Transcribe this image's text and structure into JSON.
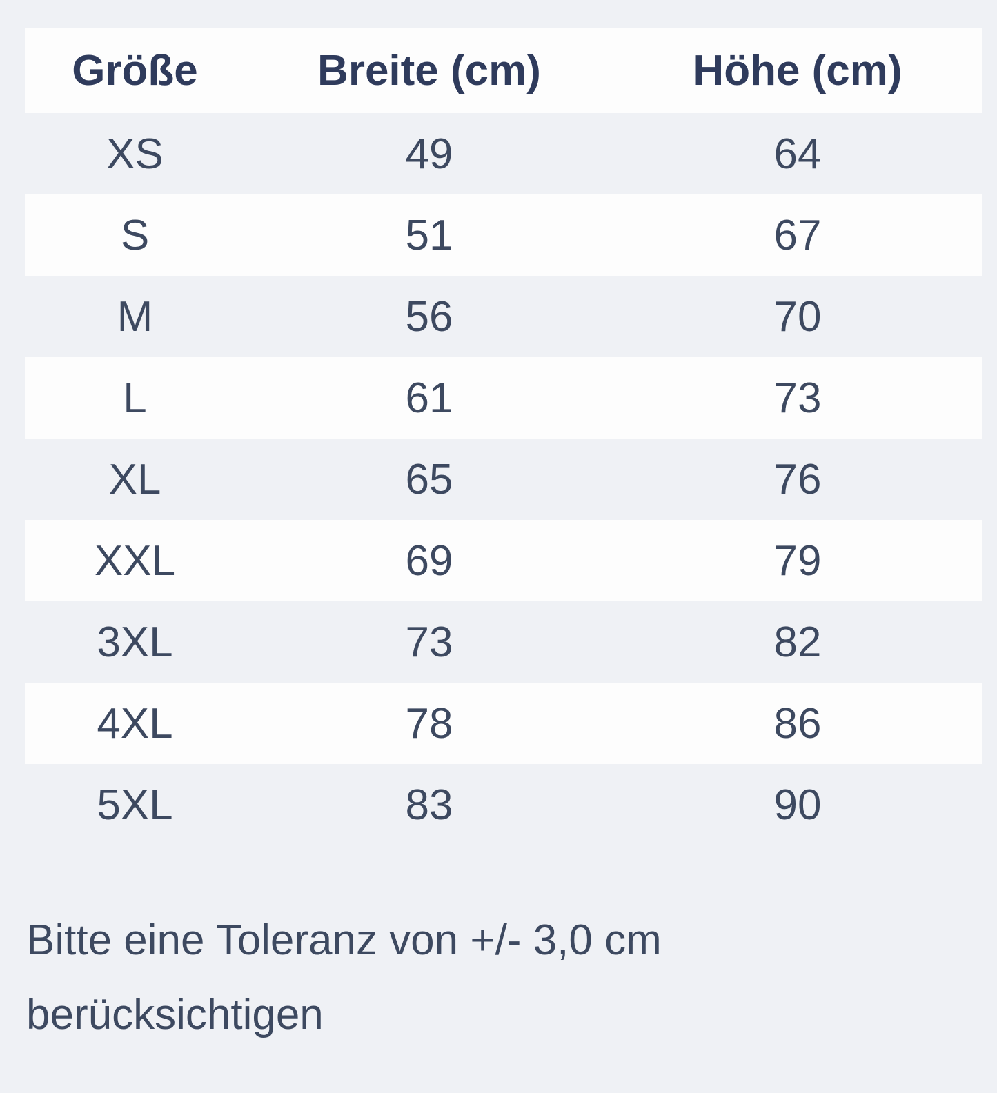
{
  "colors": {
    "page_background": "#eff1f5",
    "stripe_white": "#fdfdfd",
    "header_text": "#2f3b5c",
    "body_text": "#3d4960"
  },
  "table": {
    "columns": [
      "Größe",
      "Breite (cm)",
      "Höhe (cm)"
    ],
    "rows": [
      {
        "size": "XS",
        "breite": "49",
        "hoehe": "64"
      },
      {
        "size": "S",
        "breite": "51",
        "hoehe": "67"
      },
      {
        "size": "M",
        "breite": "56",
        "hoehe": "70"
      },
      {
        "size": "L",
        "breite": "61",
        "hoehe": "73"
      },
      {
        "size": "XL",
        "breite": "65",
        "hoehe": "76"
      },
      {
        "size": "XXL",
        "breite": "69",
        "hoehe": "79"
      },
      {
        "size": "3XL",
        "breite": "73",
        "hoehe": "82"
      },
      {
        "size": "4XL",
        "breite": "78",
        "hoehe": "86"
      },
      {
        "size": "5XL",
        "breite": "83",
        "hoehe": "90"
      }
    ]
  },
  "note": {
    "text": "Bitte eine Toleranz von +/- 3,0 cm berücksichtigen",
    "lines": [
      "Bitte eine Toleranz von +/- 3,0 cm",
      "berücksichtigen"
    ]
  }
}
